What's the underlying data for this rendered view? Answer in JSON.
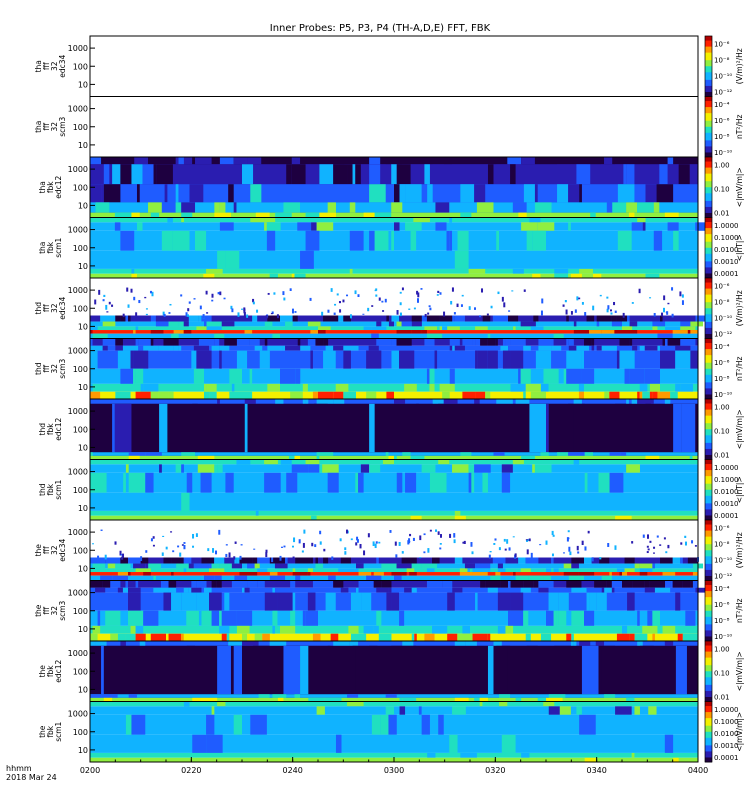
{
  "chart_data": {
    "type": "heatmap",
    "title": "Inner Probes: P5, P3, P4 (TH-A,D,E) FFT, FBK",
    "x_ticks": [
      "0200",
      "0220",
      "0240",
      "0300",
      "0320",
      "0340",
      "0400"
    ],
    "x_caption": [
      "hhmm",
      "2018 Mar 24"
    ],
    "y_ticks": {
      "fft": [
        "1000",
        "100",
        "10"
      ],
      "fbk": [
        "1000",
        "100",
        "10"
      ]
    },
    "colorbars": {
      "fft_efield": [
        "10⁻⁶",
        "10⁻⁸",
        "10⁻¹⁰",
        "10⁻¹²"
      ],
      "fft_bfield": [
        "10⁻⁴",
        "10⁻⁶",
        "10⁻⁸",
        "10⁻¹⁰"
      ],
      "fbk_efield": [
        "1.00",
        "0.10",
        "0.01"
      ],
      "fbk_bfield": [
        "1.0000",
        "0.1000",
        "0.0100",
        "0.0010",
        "0.0001"
      ]
    },
    "panels": [
      {
        "label": [
          "tha",
          "fff",
          "32",
          "edc34"
        ],
        "kind": "fft_e",
        "units": "(V/m)²/Hz",
        "data": "none"
      },
      {
        "label": [
          "tha",
          "fff",
          "32",
          "scm3"
        ],
        "kind": "fft_b",
        "units": "nT²/Hz",
        "data": "none"
      },
      {
        "label": [
          "tha",
          "fbk",
          "edc12"
        ],
        "kind": "fbk_e",
        "units": "<|mV/m|>",
        "data": "fbk_e"
      },
      {
        "label": [
          "tha",
          "fbk",
          "scm1"
        ],
        "kind": "fbk_b",
        "units": "<|nT|>",
        "data": "fbk_b"
      },
      {
        "label": [
          "thd",
          "fff",
          "32",
          "edc34"
        ],
        "kind": "fft_e",
        "units": "(V/m)²/Hz",
        "data": "fft_e"
      },
      {
        "label": [
          "thd",
          "fff",
          "32",
          "scm3"
        ],
        "kind": "fft_b",
        "units": "nT²/Hz",
        "data": "fft_b"
      },
      {
        "label": [
          "thd",
          "fbk",
          "edc12"
        ],
        "kind": "fbk_e",
        "units": "<|mV/m|>",
        "data": "fbk_e_dark"
      },
      {
        "label": [
          "thd",
          "fbk",
          "scm1"
        ],
        "kind": "fbk_b",
        "units": "<|nT|>",
        "data": "fbk_b"
      },
      {
        "label": [
          "the",
          "fff",
          "32",
          "edc34"
        ],
        "kind": "fft_e",
        "units": "(V/m)²/Hz",
        "data": "fft_e"
      },
      {
        "label": [
          "the",
          "fff",
          "32",
          "scm3"
        ],
        "kind": "fft_b",
        "units": "nT²/Hz",
        "data": "fft_b"
      },
      {
        "label": [
          "the",
          "fbk",
          "edc12"
        ],
        "kind": "fbk_e",
        "units": "<|mV/m|>",
        "data": "fbk_e_dark"
      },
      {
        "label": [
          "the",
          "fbk",
          "scm1"
        ],
        "kind": "fbk_b",
        "units": "<|mV/m|>",
        "data": "fbk_b"
      }
    ],
    "colormap": [
      "#1e0040",
      "#2a1db0",
      "#1f5cff",
      "#10b3ff",
      "#20e0c0",
      "#90ef40",
      "#f4f000",
      "#ff9a00",
      "#ff2000",
      "#b00000"
    ]
  }
}
